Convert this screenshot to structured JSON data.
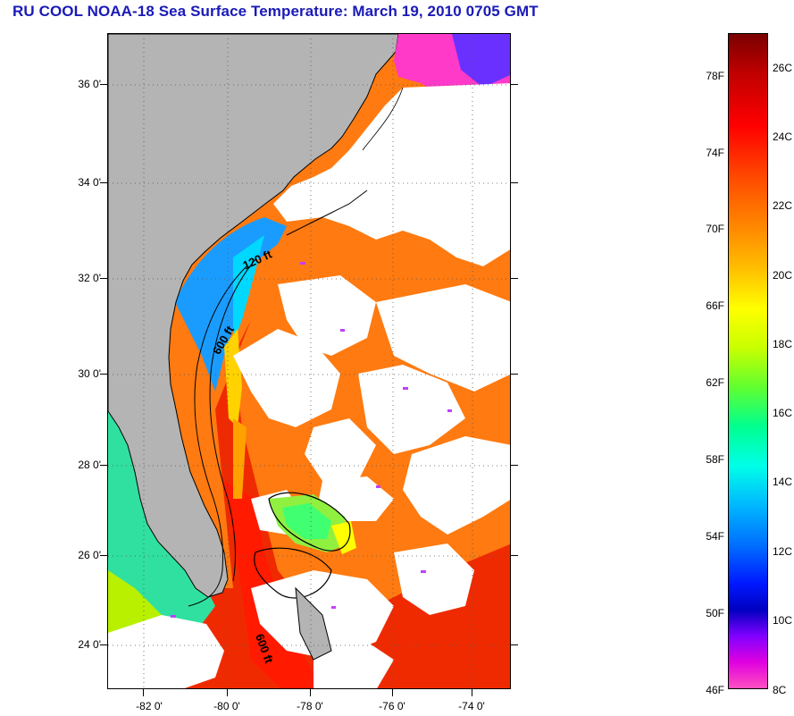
{
  "title": "RU COOL  NOAA-18  Sea Surface Temperature:  March 19, 2010 0705 GMT",
  "map": {
    "lat_labels": [
      "36 0'",
      "34 0'",
      "32 0'",
      "30 0'",
      "28 0'",
      "26 0'",
      "24 0'"
    ],
    "lon_labels": [
      "-82 0'",
      "-80 0'",
      "-78 0'",
      "-76 0'",
      "-74 0'"
    ],
    "contour_labels": [
      "120 ft",
      "600 ft",
      "600 ft"
    ],
    "colors": {
      "land": "#b4b4b4",
      "cloud": "#ffffff",
      "coastline": "#000000"
    }
  },
  "legend": {
    "fahrenheit": [
      "78F",
      "74F",
      "70F",
      "66F",
      "62F",
      "58F",
      "54F",
      "50F",
      "46F"
    ],
    "celsius": [
      "26C",
      "24C",
      "22C",
      "20C",
      "18C",
      "16C",
      "14C",
      "12C",
      "10C",
      "8C"
    ]
  }
}
